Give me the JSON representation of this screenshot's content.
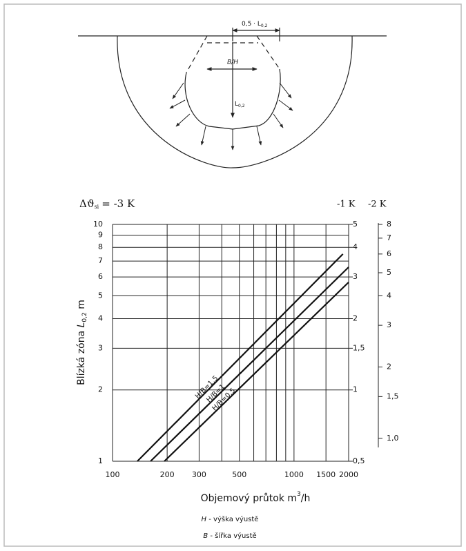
{
  "diagram": {
    "width_label": [
      "0,5 · L",
      "0,2"
    ],
    "opening_label": "B/H",
    "depth_label": [
      "L",
      "0,2"
    ]
  },
  "chart_data": {
    "type": "line",
    "axis_headers": {
      "left": {
        "symbol": "Δϑ",
        "subscript": "si",
        "rest": "= -3 K"
      },
      "right1": "-1 K",
      "right2": "-2 K"
    },
    "ylabel": [
      "Blízká zóna ",
      "L",
      "0,2",
      " m"
    ],
    "xlabel": [
      "Objemový průtok m",
      "3",
      "/h"
    ],
    "log_x": true,
    "log_y": true,
    "grid": true,
    "xlim": [
      100,
      2000
    ],
    "xticks": [
      100,
      200,
      300,
      500,
      1000,
      1500,
      2000
    ],
    "x_minor_grid": [
      400,
      600,
      700,
      800,
      900
    ],
    "ylim": [
      1,
      10
    ],
    "yticks": [
      1,
      2,
      3,
      4,
      5,
      6,
      7,
      8,
      9,
      10
    ],
    "y2lim": [
      0.5,
      5
    ],
    "y2ticks": [
      {
        "value": 0.5,
        "label": "0,5"
      },
      1,
      {
        "value": 1.5,
        "label": "1,5"
      },
      2,
      3,
      4,
      5
    ],
    "y3lim": [
      0.8,
      8
    ],
    "y3ticks": [
      {
        "value": 1.0,
        "label": "1,0"
      },
      {
        "value": 1.5,
        "label": "1,5"
      },
      2,
      3,
      4,
      5,
      6,
      7,
      8
    ],
    "series": [
      {
        "name": "H/B=1,5",
        "color": "#111111",
        "x": [
          137,
          1860
        ],
        "values": [
          1,
          7.5
        ]
      },
      {
        "name": "H/B=1",
        "color": "#111111",
        "x": [
          162,
          2000
        ],
        "values": [
          1,
          6.6
        ]
      },
      {
        "name": "H/B=0,5",
        "color": "#111111",
        "x": [
          193,
          2000
        ],
        "values": [
          1,
          5.7
        ]
      }
    ],
    "notes": [
      {
        "symbol": "H",
        "text": " - výška výustě"
      },
      {
        "symbol": "B",
        "text": " - šířka výustě"
      }
    ]
  }
}
